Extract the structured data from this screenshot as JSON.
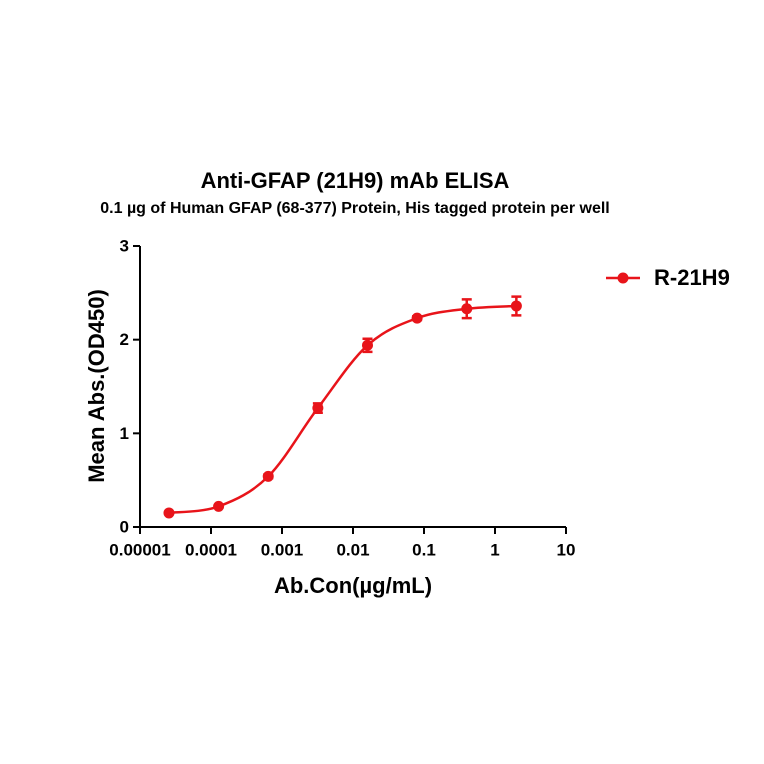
{
  "chart_data": {
    "type": "scatter",
    "title": "Anti-GFAP (21H9) mAb ELISA",
    "subtitle": "0.1  µg of Human GFAP (68-377) Protein, His  tagged protein per well",
    "x_label": "Ab.Con(µg/mL)",
    "y_label": "Mean Abs.(OD450)",
    "xscale": "log",
    "xlim": [
      1e-05,
      10
    ],
    "xticks": [
      1e-05,
      0.0001,
      0.001,
      0.01,
      0.1,
      1,
      10
    ],
    "ylim": [
      0,
      3
    ],
    "yticks": [
      0,
      1,
      2,
      3
    ],
    "legend": "right",
    "series": [
      {
        "name": "R-21H9",
        "color": "#e8141a",
        "x": [
          2.56e-05,
          0.000128,
          0.00064,
          0.0032,
          0.016,
          0.08,
          0.4,
          2
        ],
        "values": [
          0.15,
          0.22,
          0.54,
          1.27,
          1.94,
          2.23,
          2.33,
          2.36
        ],
        "errors": [
          0.01,
          0.01,
          0.02,
          0.05,
          0.07,
          0.02,
          0.1,
          0.1
        ]
      }
    ]
  }
}
